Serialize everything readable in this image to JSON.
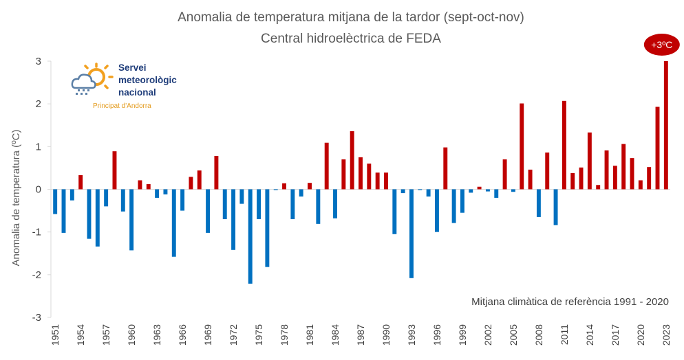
{
  "chart_data": {
    "type": "bar",
    "title": "Anomalia de temperatura mitjana de la tardor (sept-oct-nov)",
    "subtitle": "Central hidroelèctrica de FEDA",
    "ylabel": "Anomalia de temperatura (ºC)",
    "xlabel": "",
    "ylim": [
      -3,
      3
    ],
    "y_ticks": [
      3,
      2,
      1,
      0,
      -1,
      -2,
      -3
    ],
    "x_tick_labels": [
      "1951",
      "1954",
      "1957",
      "1960",
      "1963",
      "1966",
      "1969",
      "1972",
      "1975",
      "1978",
      "1981",
      "1984",
      "1987",
      "1990",
      "1993",
      "1996",
      "1999",
      "2002",
      "2005",
      "2008",
      "2011",
      "2014",
      "2017",
      "2020",
      "2023"
    ],
    "years": [
      1951,
      1952,
      1953,
      1954,
      1955,
      1956,
      1957,
      1958,
      1959,
      1960,
      1961,
      1962,
      1963,
      1964,
      1965,
      1966,
      1967,
      1968,
      1969,
      1970,
      1971,
      1972,
      1973,
      1974,
      1975,
      1976,
      1977,
      1978,
      1979,
      1980,
      1981,
      1982,
      1983,
      1984,
      1985,
      1986,
      1987,
      1988,
      1989,
      1990,
      1991,
      1992,
      1993,
      1994,
      1995,
      1996,
      1997,
      1998,
      1999,
      2000,
      2001,
      2002,
      2003,
      2004,
      2005,
      2006,
      2007,
      2008,
      2009,
      2010,
      2011,
      2012,
      2013,
      2014,
      2015,
      2016,
      2017,
      2018,
      2019,
      2020,
      2021,
      2022,
      2023
    ],
    "values": [
      -0.58,
      -1.02,
      -0.26,
      0.33,
      -1.16,
      -1.34,
      -0.4,
      0.89,
      -0.52,
      -1.43,
      0.21,
      0.12,
      -0.2,
      -0.12,
      -1.58,
      -0.5,
      0.29,
      0.44,
      -1.02,
      0.78,
      -0.7,
      -1.42,
      -0.34,
      -2.21,
      -0.7,
      -1.82,
      -0.02,
      0.14,
      -0.7,
      -0.17,
      0.15,
      -0.81,
      1.09,
      -0.68,
      0.7,
      1.36,
      0.75,
      0.6,
      0.39,
      0.39,
      -1.05,
      -0.09,
      -2.08,
      -0.02,
      -0.17,
      -1.0,
      0.98,
      -0.79,
      -0.55,
      -0.08,
      0.06,
      -0.05,
      -0.2,
      0.7,
      -0.06,
      2.01,
      0.46,
      -0.65,
      0.86,
      -0.84,
      2.07,
      0.38,
      0.51,
      1.33,
      0.1,
      0.91,
      0.55,
      1.06,
      0.73,
      0.21,
      0.52,
      1.93,
      3.0
    ],
    "colors": {
      "positive": "#c00000",
      "negative": "#0070c0"
    },
    "grid": false,
    "annotation": "Mitjana climàtica de referència 1991 - 2020",
    "badge": "+3ºC"
  },
  "logo": {
    "line1": "Servei",
    "line2": "meteorològic",
    "line3": "nacional",
    "sub": "Principat d'Andorra",
    "icon": "sun-cloud-rain-icon"
  }
}
